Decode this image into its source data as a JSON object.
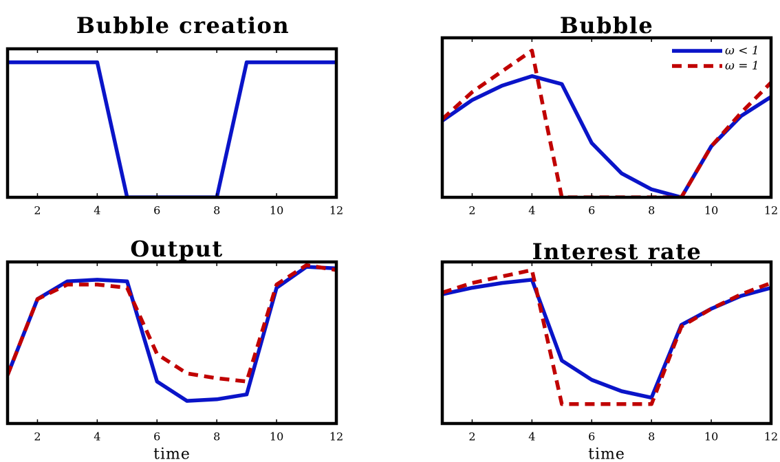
{
  "chart_data": [
    {
      "type": "line",
      "title": "Bubble creation",
      "xlabel": "",
      "xlim": [
        1,
        12
      ],
      "ylim": [
        0,
        1.1
      ],
      "xticks": [
        "2",
        "4",
        "6",
        "8",
        "10",
        "12"
      ],
      "legend": null,
      "series": [
        {
          "key": "omega_lt_1",
          "color": "#0a14c8",
          "style": "solid",
          "x": [
            1,
            2,
            3,
            4,
            5,
            6,
            7,
            8,
            9,
            10,
            11,
            12
          ],
          "y": [
            1,
            1,
            1,
            1,
            0,
            0,
            0,
            0,
            1,
            1,
            1,
            1
          ]
        }
      ]
    },
    {
      "type": "line",
      "title": "Bubble",
      "xlabel": "",
      "xlim": [
        1,
        12
      ],
      "ylim": [
        0,
        1.0
      ],
      "xticks": [
        "2",
        "4",
        "6",
        "8",
        "10",
        "12"
      ],
      "legend": {
        "position": "top-right"
      },
      "series": [
        {
          "key": "omega_lt_1",
          "name": "ω < 1",
          "color": "#0a14c8",
          "style": "solid",
          "x": [
            1,
            2,
            3,
            4,
            5,
            6,
            7,
            8,
            9,
            10,
            11,
            12
          ],
          "y": [
            0.48,
            0.61,
            0.7,
            0.76,
            0.71,
            0.34,
            0.15,
            0.05,
            0.0,
            0.32,
            0.51,
            0.63
          ]
        },
        {
          "key": "omega_eq_1",
          "name": "ω = 1",
          "color": "#c00000",
          "style": "dashed",
          "x": [
            1,
            2,
            3,
            4,
            4.5,
            5,
            9,
            10,
            11,
            12
          ],
          "y": [
            0.49,
            0.66,
            0.79,
            0.92,
            0.45,
            0.0,
            0.0,
            0.32,
            0.53,
            0.72
          ]
        }
      ]
    },
    {
      "type": "line",
      "title": "Output",
      "xlabel": "time",
      "xlim": [
        1,
        12
      ],
      "ylim": [
        0,
        1.0
      ],
      "xticks": [
        "2",
        "4",
        "6",
        "8",
        "10",
        "12"
      ],
      "legend": null,
      "series": [
        {
          "key": "omega_lt_1",
          "color": "#0a14c8",
          "style": "solid",
          "x": [
            1,
            2,
            3,
            4,
            5,
            6,
            7,
            8,
            9,
            10,
            11,
            12
          ],
          "y": [
            0.3,
            0.77,
            0.88,
            0.89,
            0.88,
            0.26,
            0.14,
            0.15,
            0.18,
            0.84,
            0.97,
            0.96
          ]
        },
        {
          "key": "omega_eq_1",
          "color": "#c00000",
          "style": "dashed",
          "x": [
            1,
            2,
            3,
            4,
            5,
            6,
            7,
            8,
            9,
            10,
            11,
            12
          ],
          "y": [
            0.3,
            0.77,
            0.86,
            0.86,
            0.84,
            0.43,
            0.31,
            0.28,
            0.26,
            0.86,
            0.98,
            0.95
          ]
        }
      ]
    },
    {
      "type": "line",
      "title": "Interest rate",
      "xlabel": "time",
      "xlim": [
        1,
        12
      ],
      "ylim": [
        0,
        1.0
      ],
      "xticks": [
        "2",
        "4",
        "6",
        "8",
        "10",
        "12"
      ],
      "legend": null,
      "series": [
        {
          "key": "omega_lt_1",
          "color": "#0a14c8",
          "style": "solid",
          "x": [
            1,
            2,
            3,
            4,
            5,
            6,
            7,
            8,
            9,
            10,
            11,
            12
          ],
          "y": [
            0.8,
            0.84,
            0.87,
            0.89,
            0.39,
            0.27,
            0.2,
            0.16,
            0.61,
            0.71,
            0.79,
            0.84
          ]
        },
        {
          "key": "omega_eq_1",
          "color": "#c00000",
          "style": "dashed",
          "x": [
            1,
            2,
            3,
            4,
            5,
            6,
            7,
            8,
            9,
            10,
            11,
            12
          ],
          "y": [
            0.81,
            0.87,
            0.91,
            0.95,
            0.12,
            0.12,
            0.12,
            0.12,
            0.6,
            0.71,
            0.8,
            0.87
          ]
        }
      ]
    }
  ]
}
